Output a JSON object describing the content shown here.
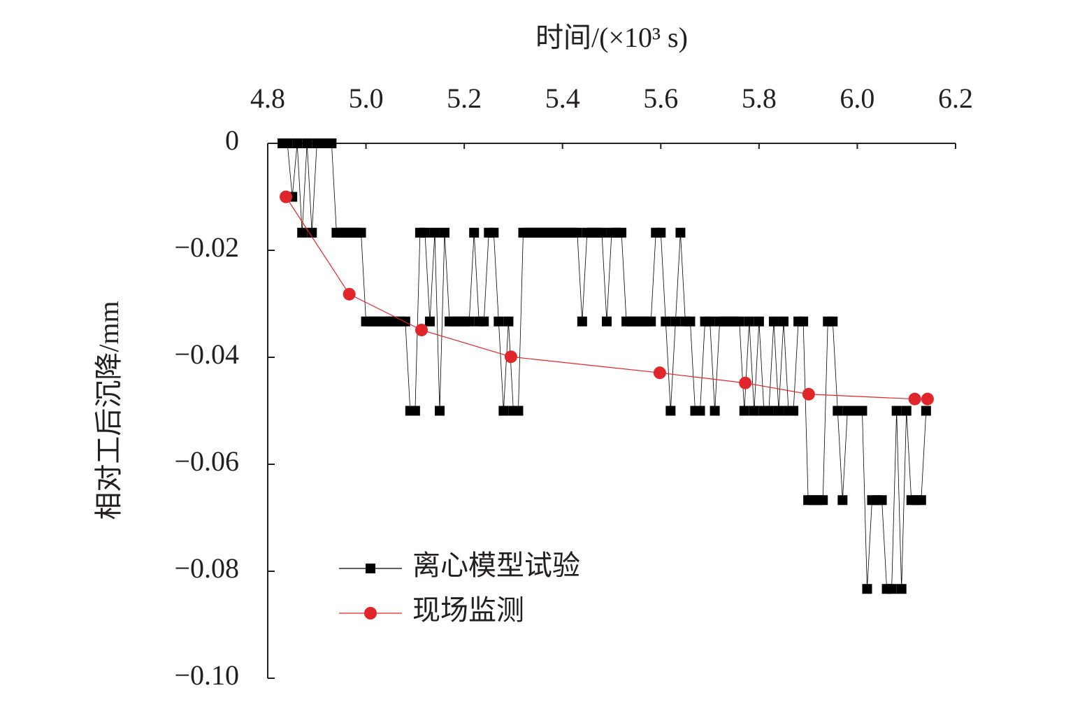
{
  "chart_data": {
    "type": "line",
    "x_label": "时间/(×10³ s)",
    "y_label": "相对工后沉降/mm",
    "xlim": [
      4.8,
      6.2
    ],
    "xticks": [
      4.8,
      {
        "value": 5,
        "label": "5.0"
      },
      5.2,
      5.4,
      5.6,
      5.8,
      {
        "value": 6,
        "label": "6.0"
      },
      6.2
    ],
    "ylim": [
      -0.1,
      0
    ],
    "yticks": [
      0,
      {
        "value": -0.02,
        "label": "−0.02"
      },
      {
        "value": -0.04,
        "label": "−0.04"
      },
      {
        "value": -0.06,
        "label": "−0.06"
      },
      {
        "value": -0.08,
        "label": "−0.08"
      },
      {
        "value": -0.1,
        "label": "−0.10"
      }
    ],
    "x_axis_position": "top",
    "legend_position": "lower left",
    "series": [
      {
        "name": "离心模型试验",
        "color": "#000000",
        "marker": "square",
        "x": [
          4.83,
          4.84,
          4.85,
          4.86,
          4.87,
          4.88,
          4.89,
          4.9,
          4.91,
          4.92,
          4.93,
          4.94,
          4.95,
          4.96,
          4.97,
          4.98,
          4.99,
          5.0,
          5.01,
          5.02,
          5.03,
          5.04,
          5.05,
          5.06,
          5.07,
          5.08,
          5.09,
          5.1,
          5.11,
          5.12,
          5.13,
          5.14,
          5.15,
          5.16,
          5.17,
          5.18,
          5.19,
          5.2,
          5.21,
          5.22,
          5.23,
          5.24,
          5.25,
          5.26,
          5.27,
          5.28,
          5.29,
          5.3,
          5.31,
          5.32,
          5.33,
          5.34,
          5.35,
          5.36,
          5.37,
          5.38,
          5.39,
          5.4,
          5.41,
          5.42,
          5.43,
          5.44,
          5.45,
          5.46,
          5.47,
          5.48,
          5.49,
          5.5,
          5.51,
          5.52,
          5.53,
          5.54,
          5.55,
          5.56,
          5.57,
          5.58,
          5.59,
          5.6,
          5.61,
          5.62,
          5.63,
          5.64,
          5.65,
          5.66,
          5.67,
          5.68,
          5.69,
          5.7,
          5.71,
          5.72,
          5.73,
          5.74,
          5.75,
          5.76,
          5.77,
          5.78,
          5.79,
          5.8,
          5.81,
          5.82,
          5.83,
          5.84,
          5.85,
          5.86,
          5.87,
          5.88,
          5.89,
          5.9,
          5.91,
          5.92,
          5.93,
          5.94,
          5.95,
          5.96,
          5.97,
          5.98,
          5.99,
          6.0,
          6.01,
          6.02,
          6.03,
          6.04,
          6.05,
          6.06,
          6.07,
          6.08,
          6.09,
          6.1,
          6.11,
          6.12,
          6.13,
          6.14
        ],
        "values": [
          0,
          0,
          -0.01,
          0,
          -0.0167,
          0,
          -0.0167,
          0,
          0,
          0,
          0,
          -0.0167,
          -0.0167,
          -0.0167,
          -0.0167,
          -0.0167,
          -0.0167,
          -0.0333,
          -0.0333,
          -0.0333,
          -0.0333,
          -0.0333,
          -0.0333,
          -0.0333,
          -0.0333,
          -0.0333,
          -0.05,
          -0.05,
          -0.0167,
          -0.0167,
          -0.0333,
          -0.0167,
          -0.05,
          -0.0167,
          -0.0333,
          -0.0333,
          -0.0333,
          -0.0333,
          -0.0333,
          -0.0167,
          -0.0333,
          -0.0333,
          -0.0167,
          -0.0167,
          -0.0333,
          -0.05,
          -0.0333,
          -0.05,
          -0.05,
          -0.0167,
          -0.0167,
          -0.0167,
          -0.0167,
          -0.0167,
          -0.0167,
          -0.0167,
          -0.0167,
          -0.0167,
          -0.0167,
          -0.0167,
          -0.0167,
          -0.0333,
          -0.0167,
          -0.0167,
          -0.0167,
          -0.0167,
          -0.0333,
          -0.0167,
          -0.0167,
          -0.0167,
          -0.0333,
          -0.0333,
          -0.0333,
          -0.0333,
          -0.0333,
          -0.0333,
          -0.0167,
          -0.0167,
          -0.0333,
          -0.05,
          -0.0333,
          -0.0167,
          -0.0333,
          -0.0333,
          -0.05,
          -0.05,
          -0.0333,
          -0.0333,
          -0.05,
          -0.0333,
          -0.0333,
          -0.0333,
          -0.0333,
          -0.0333,
          -0.05,
          -0.0333,
          -0.05,
          -0.0333,
          -0.05,
          -0.05,
          -0.0333,
          -0.05,
          -0.0333,
          -0.05,
          -0.05,
          -0.0333,
          -0.0333,
          -0.0667,
          -0.0667,
          -0.0667,
          -0.0667,
          -0.0333,
          -0.0333,
          -0.05,
          -0.0667,
          -0.05,
          -0.05,
          -0.05,
          -0.05,
          -0.0833,
          -0.0667,
          -0.0667,
          -0.0667,
          -0.0833,
          -0.0833,
          -0.05,
          -0.0833,
          -0.05,
          -0.0667,
          -0.0667,
          -0.0667,
          -0.05
        ]
      },
      {
        "name": "现场监测",
        "color": "#e0262b",
        "marker": "circle",
        "x": [
          4.837,
          4.966,
          5.113,
          5.295,
          5.598,
          5.772,
          5.901,
          6.117,
          6.143
        ],
        "values": [
          -0.01,
          -0.0282,
          -0.0349,
          -0.0399,
          -0.0429,
          -0.0448,
          -0.0469,
          -0.0478,
          -0.0478
        ]
      }
    ]
  }
}
